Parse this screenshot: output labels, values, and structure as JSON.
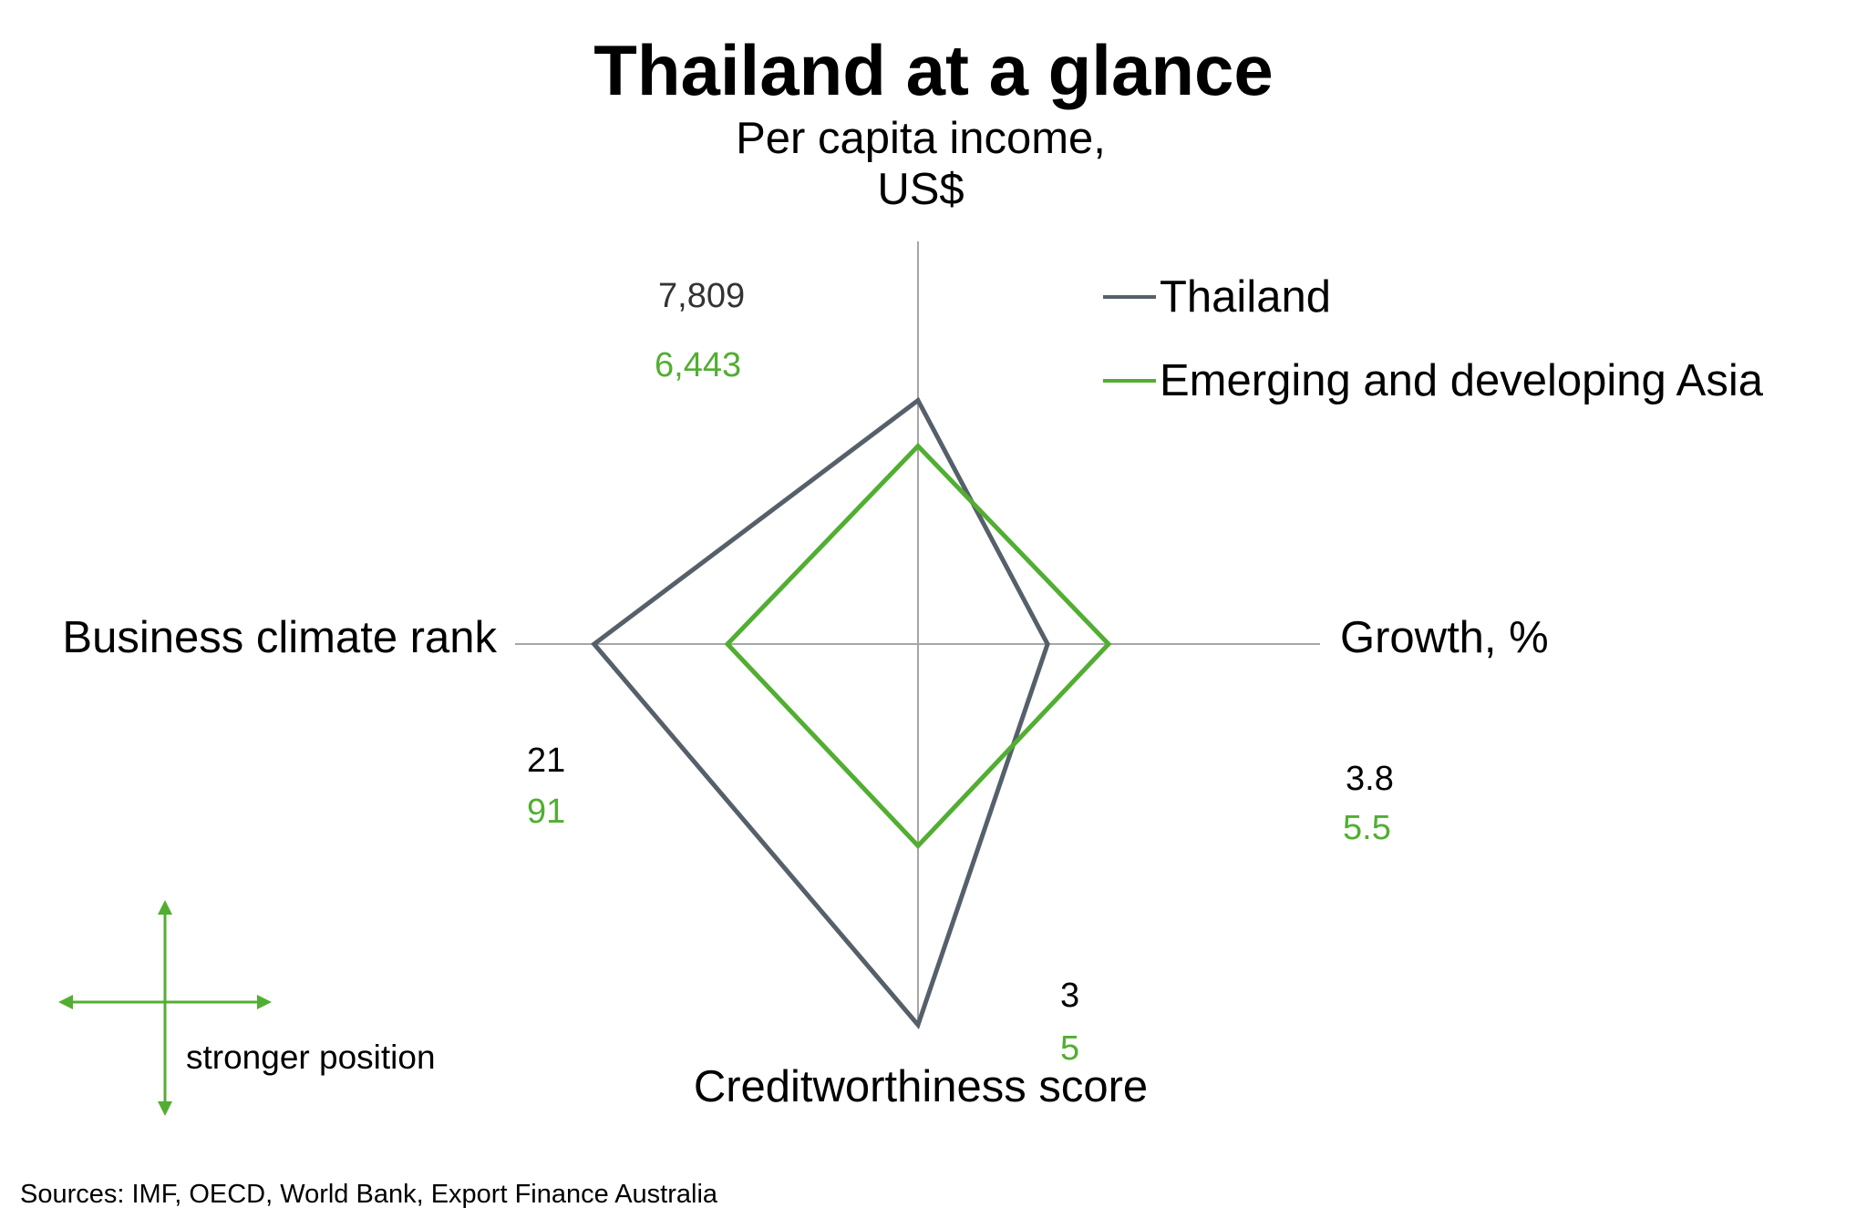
{
  "colors": {
    "thailand": "#56606a",
    "asia": "#52ae32",
    "axis": "#a6a6a6",
    "hint": "#52ae32"
  },
  "chart_data": {
    "type": "radar",
    "title": "Thailand at a glance",
    "axes": [
      {
        "key": "top",
        "label_lines": [
          "Per capita income,",
          "US$"
        ]
      },
      {
        "key": "right",
        "label": "Growth, %"
      },
      {
        "key": "bottom",
        "label": "Creditworthiness score"
      },
      {
        "key": "left",
        "label": "Business climate rank"
      }
    ],
    "series": [
      {
        "name": "Thailand",
        "values": {
          "top": "7,809",
          "right": "3.8",
          "bottom": "3",
          "left": "21"
        }
      },
      {
        "name": "Emerging and developing Asia",
        "values": {
          "top": "6,443",
          "right": "5.5",
          "bottom": "5",
          "left": "91"
        }
      }
    ],
    "relative_reach": {
      "Thailand": {
        "top": 0.64,
        "right": 0.34,
        "bottom": 1.0,
        "left": 0.85
      },
      "Emerging and developing Asia": {
        "top": 0.52,
        "right": 0.5,
        "bottom": 0.53,
        "left": 0.5
      }
    },
    "legend_position": "top-right",
    "grid": false
  },
  "hint": {
    "text": "stronger position"
  },
  "source": "Sources: IMF, OECD, World Bank, Export Finance Australia"
}
